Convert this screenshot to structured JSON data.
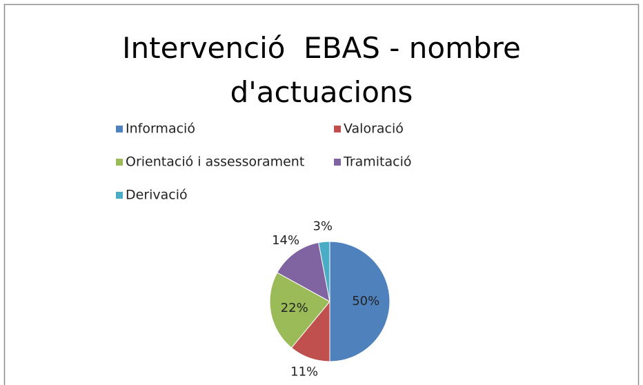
{
  "chart_data": {
    "type": "pie",
    "title": "Intervenció  EBAS - nombre d'actuacions",
    "categories": [
      "Informació",
      "Valoració",
      "Orientació i assessorament",
      "Tramitació",
      "Derivació"
    ],
    "values": [
      50,
      11,
      22,
      14,
      3
    ],
    "value_labels": [
      "50%",
      "11%",
      "22%",
      "14%",
      "3%"
    ],
    "colors": [
      "#4f81bd",
      "#c0504d",
      "#9bbb59",
      "#8064a2",
      "#4bacc6"
    ],
    "legend": "top"
  }
}
